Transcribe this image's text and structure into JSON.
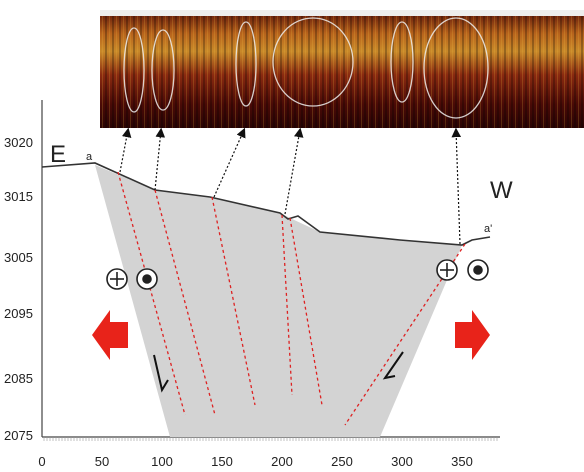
{
  "labels": {
    "east": "E",
    "west": "W",
    "start": "a",
    "end": "a'"
  },
  "y_axis": {
    "ticks": [
      3020,
      3015,
      3005,
      2095,
      2085,
      2075
    ]
  },
  "x_axis": {
    "ticks": [
      0,
      50,
      100,
      150,
      200,
      250,
      300,
      350
    ]
  }
}
